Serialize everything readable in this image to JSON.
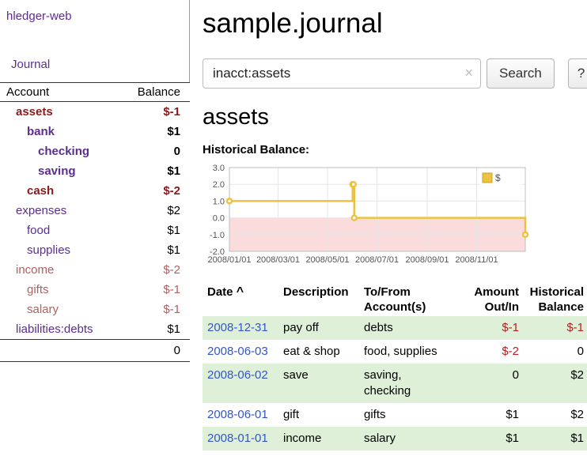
{
  "app": {
    "title": "hledger-web"
  },
  "colors": {
    "purple": "#5c2d91",
    "link-blue": "#3355cc",
    "neg-strong": "#8b1a1a",
    "neg-soft": "#b05f5f",
    "neg-register": "#b22222",
    "row-green": "#dff0d8",
    "chart-line": "#edc240",
    "chart-negative-fill": "#fbdcdc",
    "grid": "#e6e6e6"
  },
  "sidebar": {
    "nav_journal": "Journal",
    "accounts": {
      "col_account": "Account",
      "col_balance": "Balance",
      "rows": [
        {
          "name": "assets",
          "balance": "$-1",
          "level": 0,
          "bold": true,
          "neg": "strong"
        },
        {
          "name": "bank",
          "balance": "$1",
          "level": 1,
          "bold": true,
          "neg": "none"
        },
        {
          "name": "checking",
          "balance": "0",
          "level": 2,
          "bold": true,
          "neg": "none"
        },
        {
          "name": "saving",
          "balance": "$1",
          "level": 2,
          "bold": true,
          "neg": "none"
        },
        {
          "name": "cash",
          "balance": "$-2",
          "level": 1,
          "bold": true,
          "neg": "strong"
        },
        {
          "name": "expenses",
          "balance": "$2",
          "level": 0,
          "bold": false,
          "neg": "none"
        },
        {
          "name": "food",
          "balance": "$1",
          "level": 1,
          "bold": false,
          "neg": "none"
        },
        {
          "name": "supplies",
          "balance": "$1",
          "level": 1,
          "bold": false,
          "neg": "none"
        },
        {
          "name": "income",
          "balance": "$-2",
          "level": 0,
          "bold": false,
          "neg": "soft"
        },
        {
          "name": "gifts",
          "balance": "$-1",
          "level": 1,
          "bold": false,
          "neg": "soft"
        },
        {
          "name": "salary",
          "balance": "$-1",
          "level": 1,
          "bold": false,
          "neg": "soft"
        },
        {
          "name": "liabilities:debts",
          "balance": "$1",
          "level": 0,
          "bold": false,
          "neg": "none"
        }
      ],
      "total": "0"
    }
  },
  "main": {
    "title": "sample.journal",
    "search": {
      "value": "inacct:assets",
      "clear": "×",
      "button": "Search",
      "help": "?"
    },
    "heading": "assets",
    "chart_title": "Historical Balance:"
  },
  "chart_data": {
    "type": "line",
    "step": true,
    "title": "Historical Balance",
    "xlabel": "",
    "ylabel": "",
    "ylim": [
      -2,
      3
    ],
    "y_ticks": [
      -2,
      -1,
      0,
      1,
      2,
      3
    ],
    "x_ticks": [
      "2008/01/01",
      "2008/03/01",
      "2008/05/01",
      "2008/07/01",
      "2008/09/01",
      "2008/11/01"
    ],
    "x_range": [
      "2008-01-01",
      "2008-12-31"
    ],
    "grid": true,
    "legend_position": "top-right",
    "series": [
      {
        "name": "$",
        "color": "#edc240",
        "points": [
          [
            "2008-01-01",
            1
          ],
          [
            "2008-06-01",
            2
          ],
          [
            "2008-06-02",
            2
          ],
          [
            "2008-06-03",
            0
          ],
          [
            "2008-12-31",
            -1
          ]
        ]
      }
    ]
  },
  "register": {
    "headers": {
      "date": "Date",
      "sort": "^",
      "description": "Description",
      "account_line1": "To/From",
      "account_line2": "Account(s)",
      "amount_line1": "Amount",
      "amount_line2": "Out/In",
      "balance_line1": "Historical",
      "balance_line2": "Balance"
    },
    "rows": [
      {
        "date": "2008-12-31",
        "description": "pay off",
        "accounts": [
          "debts"
        ],
        "amount": "$-1",
        "amount_neg": true,
        "balance": "$-1",
        "balance_neg": true,
        "highlight": true
      },
      {
        "date": "2008-06-03",
        "description": "eat & shop",
        "accounts": [
          "food, supplies"
        ],
        "amount": "$-2",
        "amount_neg": true,
        "balance": "0",
        "balance_neg": false,
        "highlight": false
      },
      {
        "date": "2008-06-02",
        "description": "save",
        "accounts": [
          "saving,",
          "checking"
        ],
        "amount": "0",
        "amount_neg": false,
        "balance": "$2",
        "balance_neg": false,
        "highlight": true
      },
      {
        "date": "2008-06-01",
        "description": "gift",
        "accounts": [
          "gifts"
        ],
        "amount": "$1",
        "amount_neg": false,
        "balance": "$2",
        "balance_neg": false,
        "highlight": false
      },
      {
        "date": "2008-01-01",
        "description": "income",
        "accounts": [
          "salary"
        ],
        "amount": "$1",
        "amount_neg": false,
        "balance": "$1",
        "balance_neg": false,
        "highlight": true
      }
    ]
  }
}
